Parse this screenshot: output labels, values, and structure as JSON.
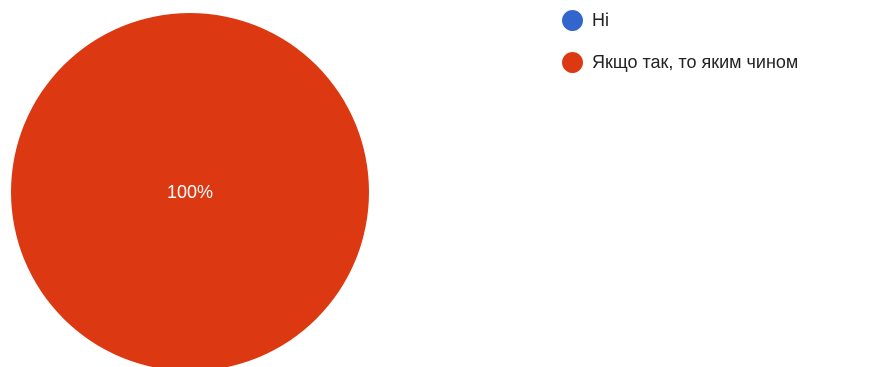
{
  "chart_data": {
    "type": "pie",
    "slices": [
      {
        "label": "Ні",
        "value": 0,
        "percent_label": "",
        "color": "#3366CC"
      },
      {
        "label": "Якщо так, то яким чином",
        "value": 100,
        "percent_label": "100%",
        "color": "#DC3912"
      }
    ],
    "legend_position": "top-right"
  }
}
